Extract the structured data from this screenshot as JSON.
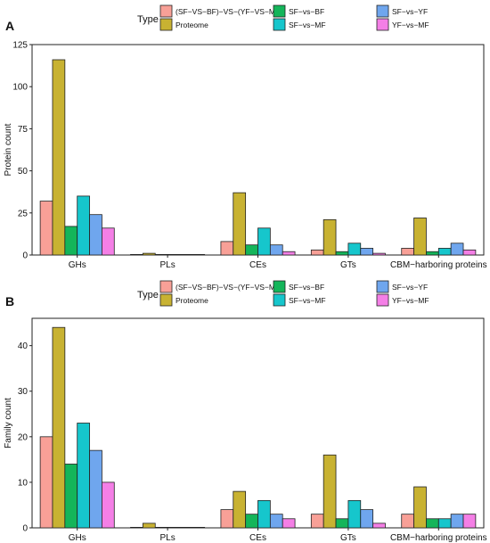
{
  "chart_data": [
    {
      "type": "bar",
      "panel_label": "A",
      "legend_title": "Type",
      "legend_position": "top",
      "ylabel": "Protein count",
      "xlabel": "",
      "ylim": [
        0,
        125
      ],
      "yticks": [
        0,
        25,
        50,
        75,
        100,
        125
      ],
      "categories": [
        "GHs",
        "PLs",
        "CEs",
        "GTs",
        "CBM−harboring proteins"
      ],
      "series": [
        {
          "name": "(SF−VS−BF)−VS−(YF−VS−MF)",
          "color": "#F8A097",
          "values": [
            32,
            0,
            8,
            3,
            4
          ]
        },
        {
          "name": "Proteome",
          "color": "#C8B232",
          "values": [
            116,
            1,
            37,
            21,
            22
          ]
        },
        {
          "name": "SF−vs−BF",
          "color": "#14B55A",
          "values": [
            17,
            0,
            6,
            2,
            2
          ]
        },
        {
          "name": "SF−vs−MF",
          "color": "#16C6CC",
          "values": [
            35,
            0,
            16,
            7,
            4
          ]
        },
        {
          "name": "SF−vs−YF",
          "color": "#6FA6EE",
          "values": [
            24,
            0,
            6,
            4,
            7
          ]
        },
        {
          "name": "YF−vs−MF",
          "color": "#F47FE6",
          "values": [
            16,
            0,
            2,
            1,
            3
          ]
        }
      ]
    },
    {
      "type": "bar",
      "panel_label": "B",
      "legend_title": "Type",
      "legend_position": "top",
      "ylabel": "Family count",
      "xlabel": "",
      "ylim": [
        0,
        46
      ],
      "yticks": [
        0,
        10,
        20,
        30,
        40
      ],
      "categories": [
        "GHs",
        "PLs",
        "CEs",
        "GTs",
        "CBM−harboring proteins"
      ],
      "series": [
        {
          "name": "(SF−VS−BF)−VS−(YF−VS−MF)",
          "color": "#F8A097",
          "values": [
            20,
            0,
            4,
            3,
            3
          ]
        },
        {
          "name": "Proteome",
          "color": "#C8B232",
          "values": [
            44,
            1,
            8,
            16,
            9
          ]
        },
        {
          "name": "SF−vs−BF",
          "color": "#14B55A",
          "values": [
            14,
            0,
            3,
            2,
            2
          ]
        },
        {
          "name": "SF−vs−MF",
          "color": "#16C6CC",
          "values": [
            23,
            0,
            6,
            6,
            2
          ]
        },
        {
          "name": "SF−vs−YF",
          "color": "#6FA6EE",
          "values": [
            17,
            0,
            3,
            4,
            3
          ]
        },
        {
          "name": "YF−vs−MF",
          "color": "#F47FE6",
          "values": [
            10,
            0,
            2,
            1,
            3
          ]
        }
      ]
    }
  ]
}
